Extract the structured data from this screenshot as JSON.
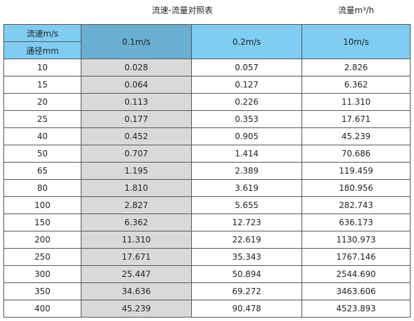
{
  "title": "流速-流量对照表",
  "unit": "流量m³/h",
  "header": {
    "velocity_label": "流速m/s",
    "diameter_label": "通径mm",
    "columns": [
      "0.1m/s",
      "0.2m/s",
      "10m/s"
    ]
  },
  "colors": {
    "header": "#7fcdf3",
    "header_highlight": "#6aafd2",
    "highlight_column": "#d9d9d9"
  },
  "rows": [
    [
      "10",
      "0.028",
      "0.057",
      "2.826"
    ],
    [
      "15",
      "0.064",
      "0.127",
      "6.362"
    ],
    [
      "20",
      "0.113",
      "0.226",
      "11.310"
    ],
    [
      "25",
      "0.177",
      "0.353",
      "17.671"
    ],
    [
      "40",
      "0.452",
      "0.905",
      "45.239"
    ],
    [
      "50",
      "0.707",
      "1.414",
      "70.686"
    ],
    [
      "65",
      "1.195",
      "2.389",
      "119.459"
    ],
    [
      "80",
      "1.810",
      "3.619",
      "180.956"
    ],
    [
      "100",
      "2.827",
      "5.655",
      "282.743"
    ],
    [
      "150",
      "6.362",
      "12.723",
      "636.173"
    ],
    [
      "200",
      "11.310",
      "22.619",
      "1130.973"
    ],
    [
      "250",
      "17.671",
      "35.343",
      "1767.146"
    ],
    [
      "300",
      "25.447",
      "50.894",
      "2544.690"
    ],
    [
      "350",
      "34.636",
      "69.272",
      "3463.606"
    ],
    [
      "400",
      "45.239",
      "90.478",
      "4523.893"
    ]
  ]
}
